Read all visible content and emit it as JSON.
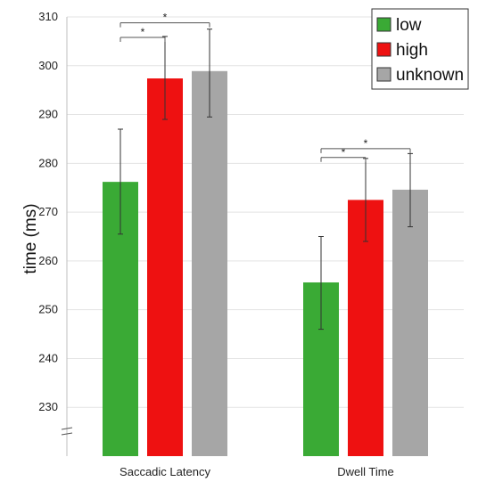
{
  "chart_data": {
    "type": "bar",
    "categories": [
      "Saccadic Latency",
      "Dwell Time"
    ],
    "series": [
      {
        "name": "low",
        "color": "#3aaa35",
        "values": [
          276.2,
          255.6
        ],
        "error_low": [
          265.5,
          246.0
        ],
        "error_high": [
          287.0,
          265.0
        ]
      },
      {
        "name": "high",
        "color": "#ee1111",
        "values": [
          297.4,
          272.5
        ],
        "error_low": [
          289.0,
          264.0
        ],
        "error_high": [
          306.0,
          281.0
        ]
      },
      {
        "name": "unknown",
        "color": "#a6a6a6",
        "values": [
          298.9,
          274.6
        ],
        "error_low": [
          289.5,
          267.0
        ],
        "error_high": [
          307.5,
          282.0
        ]
      }
    ],
    "ylabel": "time (ms)",
    "xlabel": "",
    "ylim": [
      220,
      310
    ],
    "axis_break": true,
    "yticks": [
      230,
      240,
      250,
      260,
      270,
      280,
      290,
      300,
      310
    ],
    "grid": true,
    "legend_position": "top-right",
    "significance": [
      {
        "category": 0,
        "from": 0,
        "to": 1,
        "label": "*",
        "y": 305.8
      },
      {
        "category": 0,
        "from": 0,
        "to": 2,
        "label": "*",
        "y": 308.8
      },
      {
        "category": 1,
        "from": 0,
        "to": 1,
        "label": "*",
        "y": 281.2
      },
      {
        "category": 1,
        "from": 0,
        "to": 2,
        "label": "*",
        "y": 283.0
      }
    ]
  }
}
